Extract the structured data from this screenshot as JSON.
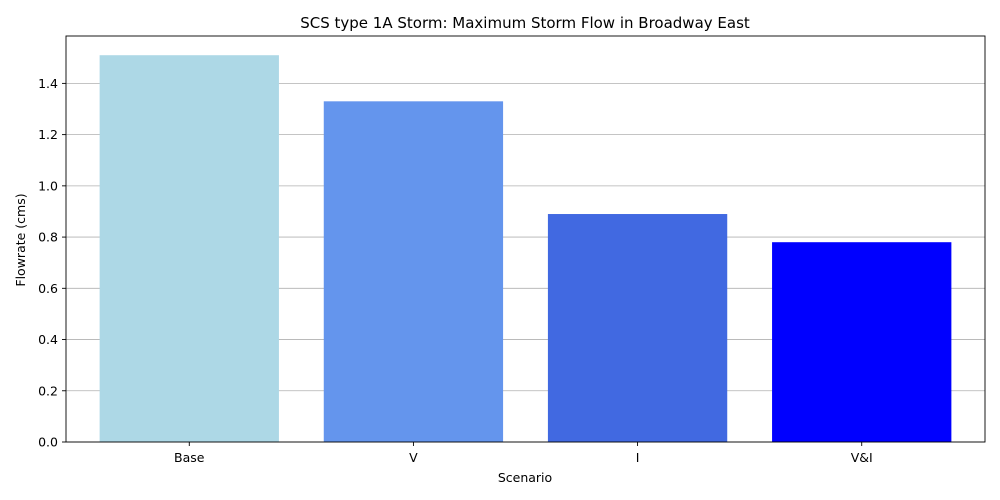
{
  "chart_data": {
    "type": "bar",
    "title": "SCS type 1A Storm: Maximum Storm Flow in Broadway East",
    "xlabel": "Scenario",
    "ylabel": "Flowrate (cms)",
    "categories": [
      "Base",
      "V",
      "I",
      "V&I"
    ],
    "values": [
      1.51,
      1.33,
      0.89,
      0.78
    ],
    "colors": [
      "#add8e6",
      "#6495ed",
      "#4169e1",
      "#0000ff"
    ],
    "ylim": [
      0,
      1.585
    ],
    "yticks": [
      0.0,
      0.2,
      0.4,
      0.6,
      0.8,
      1.0,
      1.2,
      1.4
    ],
    "ytick_labels": [
      "0.0",
      "0.2",
      "0.4",
      "0.6",
      "0.8",
      "1.0",
      "1.2",
      "1.4"
    ],
    "grid": "y"
  }
}
